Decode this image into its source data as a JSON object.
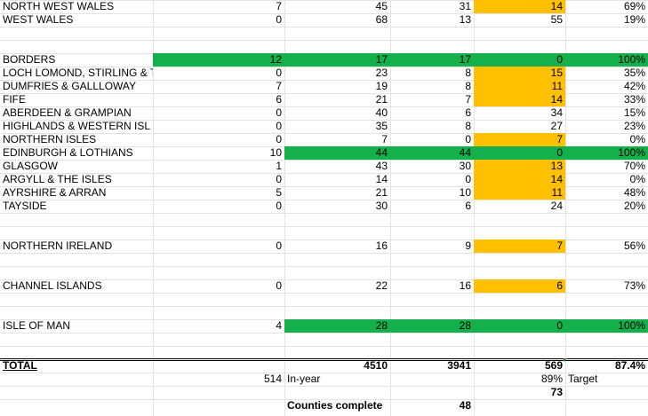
{
  "rows": [
    {
      "name": "NORTH WEST WALES",
      "a": "7",
      "b": "45",
      "c": "31",
      "d": "14",
      "e": "69%"
    },
    {
      "name": "WEST WALES",
      "a": "0",
      "b": "68",
      "c": "13",
      "d": "55",
      "e": "19%"
    },
    {
      "name": "BORDERS",
      "a": "12",
      "b": "17",
      "c": "17",
      "d": "0",
      "e": "100%"
    },
    {
      "name": "LOCH LOMOND, STIRLING & T",
      "a": "0",
      "b": "23",
      "c": "8",
      "d": "15",
      "e": "35%"
    },
    {
      "name": "DUMFRIES & GALLLOWAY",
      "a": "7",
      "b": "19",
      "c": "8",
      "d": "11",
      "e": "42%"
    },
    {
      "name": "FIFE",
      "a": "6",
      "b": "21",
      "c": "7",
      "d": "14",
      "e": "33%"
    },
    {
      "name": "ABERDEEN & GRAMPIAN",
      "a": "0",
      "b": "40",
      "c": "6",
      "d": "34",
      "e": "15%"
    },
    {
      "name": "HIGHLANDS & WESTERN ISL",
      "a": "0",
      "b": "35",
      "c": "8",
      "d": "27",
      "e": "23%"
    },
    {
      "name": "NORTHERN ISLES",
      "a": "0",
      "b": "7",
      "c": "0",
      "d": "7",
      "e": "0%"
    },
    {
      "name": "EDINBURGH & LOTHIANS",
      "a": "10",
      "b": "44",
      "c": "44",
      "d": "0",
      "e": "100%"
    },
    {
      "name": "GLASGOW",
      "a": "1",
      "b": "43",
      "c": "30",
      "d": "13",
      "e": "70%"
    },
    {
      "name": "ARGYLL & THE ISLES",
      "a": "0",
      "b": "14",
      "c": "0",
      "d": "14",
      "e": "0%"
    },
    {
      "name": "AYRSHIRE & ARRAN",
      "a": "5",
      "b": "21",
      "c": "10",
      "d": "11",
      "e": "48%"
    },
    {
      "name": "TAYSIDE",
      "a": "0",
      "b": "30",
      "c": "6",
      "d": "24",
      "e": "20%"
    },
    {
      "name": "NORTHERN IRELAND",
      "a": "0",
      "b": "16",
      "c": "9",
      "d": "7",
      "e": "56%"
    },
    {
      "name": "CHANNEL ISLANDS",
      "a": "0",
      "b": "22",
      "c": "16",
      "d": "6",
      "e": "73%"
    },
    {
      "name": "ISLE OF MAN",
      "a": "4",
      "b": "28",
      "c": "28",
      "d": "0",
      "e": "100%"
    }
  ],
  "total": {
    "label": "TOTAL",
    "b": "4510",
    "c": "3941",
    "d": "569",
    "e": "87.4%"
  },
  "summary": {
    "in_year_value": "514",
    "in_year_label": "In-year",
    "target_value": "89%",
    "target_label": "Target",
    "count": "73",
    "counties_label": "Counties complete",
    "counties_value": "48"
  },
  "colors": {
    "complete": "#14b04c",
    "outstanding": "#ffc000"
  }
}
